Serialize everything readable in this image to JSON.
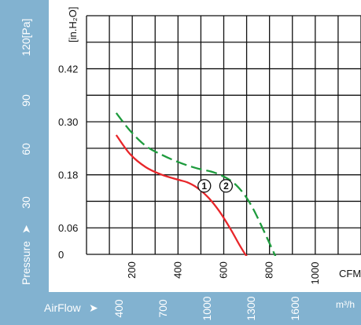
{
  "chart_data": {
    "type": "line",
    "grid": true,
    "y_axis_left": {
      "label": "Pressure",
      "arrow": "➤",
      "unit": "[Pa]",
      "ticks": [
        {
          "text": "30",
          "value": 30
        },
        {
          "text": "60",
          "value": 60
        },
        {
          "text": "90",
          "value": 90
        },
        {
          "text": "120",
          "value": 120
        }
      ]
    },
    "y_axis_inner": {
      "unit": "[in.H₂O]",
      "ticks": [
        {
          "text": "0",
          "value": 0
        },
        {
          "text": "0.06",
          "value": 0.06
        },
        {
          "text": "0.18",
          "value": 0.18
        },
        {
          "text": "0.30",
          "value": 0.3
        },
        {
          "text": "0.42",
          "value": 0.42
        }
      ],
      "ylim": [
        0,
        0.54
      ]
    },
    "x_axis_cfm": {
      "unit": "CFM",
      "ticks": [
        {
          "text": "200",
          "value": 200
        },
        {
          "text": "400",
          "value": 400
        },
        {
          "text": "600",
          "value": 600
        },
        {
          "text": "800",
          "value": 800
        },
        {
          "text": "1000",
          "value": 1000
        }
      ],
      "xlim": [
        0,
        1200
      ]
    },
    "x_axis_m3h": {
      "label": "AirFlow",
      "arrow": "➤",
      "unit": "m³/h",
      "ticks": [
        {
          "text": "400",
          "value": 400
        },
        {
          "text": "700",
          "value": 700
        },
        {
          "text": "1000",
          "value": 1000
        },
        {
          "text": "1300",
          "value": 1300
        },
        {
          "text": "1600",
          "value": 1600
        }
      ]
    },
    "series": [
      {
        "marker": "①",
        "color": "#e8262a",
        "style": "solid",
        "x": [
          130,
          190,
          260,
          330,
          400,
          440,
          480,
          530,
          580,
          630,
          670,
          700,
          720
        ],
        "y": [
          0.27,
          0.227,
          0.197,
          0.18,
          0.169,
          0.163,
          0.152,
          0.13,
          0.098,
          0.057,
          0.02,
          -0.004,
          -0.01
        ]
      },
      {
        "marker": "②",
        "color": "#1e9b3d",
        "style": "dashed",
        "x": [
          130,
          190,
          260,
          330,
          400,
          480,
          560,
          630,
          680,
          720,
          760,
          800,
          840
        ],
        "y": [
          0.32,
          0.28,
          0.245,
          0.225,
          0.209,
          0.195,
          0.185,
          0.167,
          0.142,
          0.111,
          0.07,
          0.025,
          -0.02
        ]
      }
    ],
    "marker_positions": [
      {
        "text": "①",
        "x": 515,
        "y": 0.155
      },
      {
        "text": "②",
        "x": 610,
        "y": 0.155
      }
    ]
  }
}
